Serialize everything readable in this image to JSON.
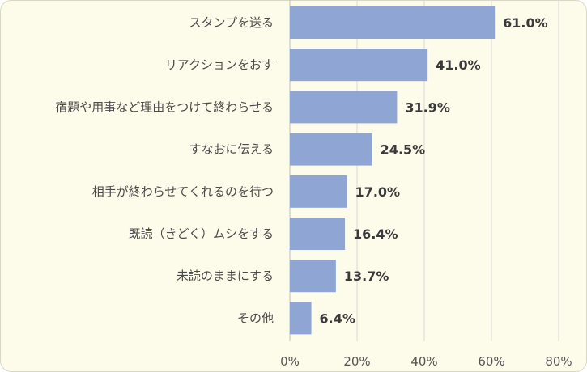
{
  "chart_data": {
    "type": "bar",
    "orientation": "horizontal",
    "categories": [
      "スタンプを送る",
      "リアクションをおす",
      "宿題や用事など理由をつけて終わらせる",
      "すなおに伝える",
      "相手が終わらせてくれるのを待つ",
      "既読（きどく）ムシをする",
      "未読のままにする",
      "その他"
    ],
    "values": [
      61.0,
      41.0,
      31.9,
      24.5,
      17.0,
      16.4,
      13.7,
      6.4
    ],
    "value_labels": [
      "61.0%",
      "41.0%",
      "31.9%",
      "24.5%",
      "17.0%",
      "16.4%",
      "13.7%",
      "6.4%"
    ],
    "xlim": [
      0,
      80
    ],
    "xticks": [
      0,
      20,
      40,
      60,
      80
    ],
    "xtick_labels": [
      "0%",
      "20%",
      "40%",
      "60%",
      "80%"
    ],
    "grid": "vertical",
    "bar_color": "#8fa6d4",
    "background_color": "#fdfbea",
    "title": "",
    "xlabel": "",
    "ylabel": ""
  }
}
